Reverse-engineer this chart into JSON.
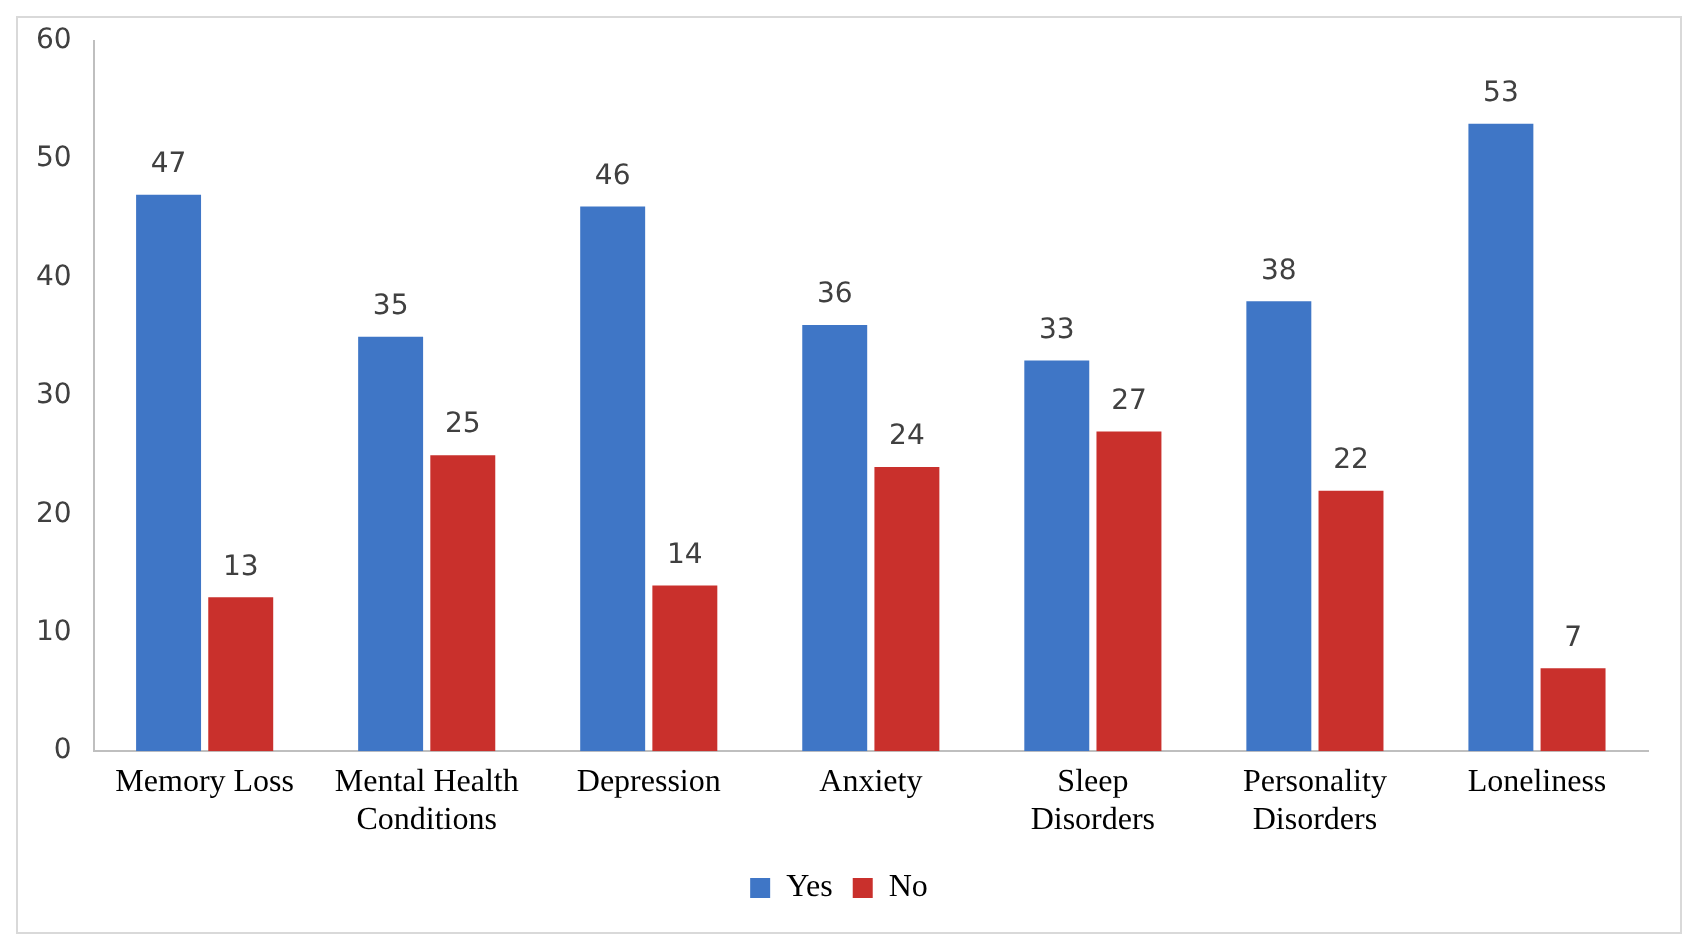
{
  "chart_data": {
    "type": "bar",
    "categories": [
      "Memory Loss",
      "Mental Health Conditions",
      "Depression",
      "Anxiety",
      "Sleep Disorders",
      "Personality Disorders",
      "Loneliness"
    ],
    "series": [
      {
        "name": "Yes",
        "color": "#3f76c6",
        "values": [
          47,
          35,
          46,
          36,
          33,
          38,
          53
        ]
      },
      {
        "name": "No",
        "color": "#c9302c",
        "values": [
          13,
          25,
          14,
          24,
          27,
          22,
          7
        ]
      }
    ],
    "ylim": [
      0,
      60
    ],
    "yticks": [
      0,
      10,
      20,
      30,
      40,
      50,
      60
    ],
    "grid": false,
    "legend": "bottom",
    "data_labels": true
  }
}
